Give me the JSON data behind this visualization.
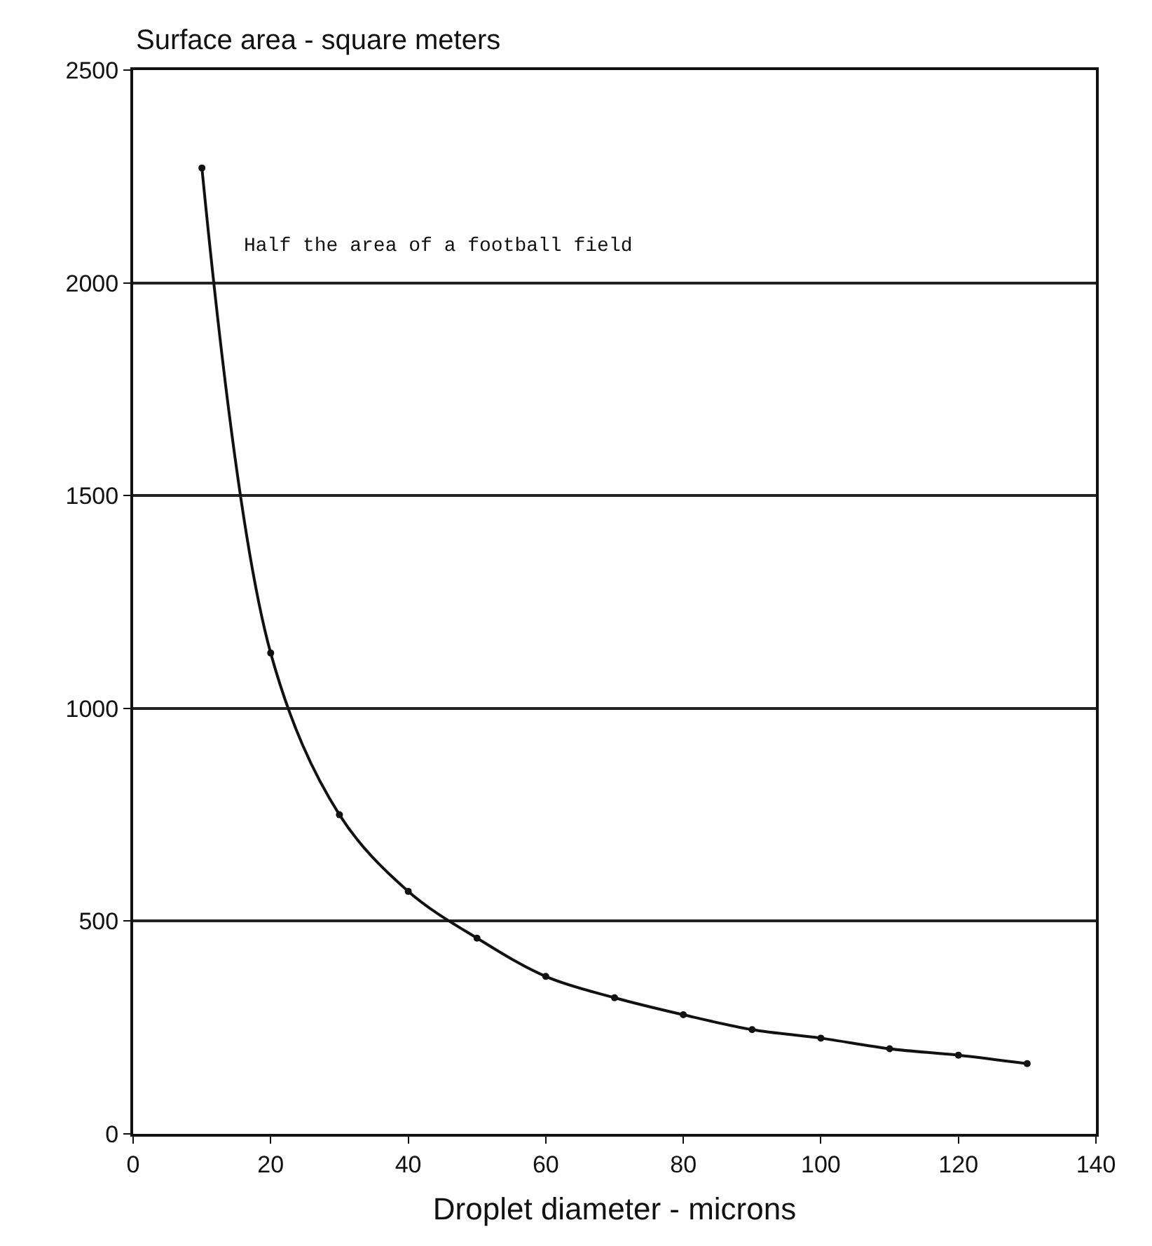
{
  "chart_data": {
    "type": "line",
    "ylabel": "Surface area - square meters",
    "xlabel": "Droplet diameter - microns",
    "x": [
      10,
      20,
      30,
      40,
      50,
      60,
      70,
      80,
      90,
      100,
      110,
      120,
      130
    ],
    "series": [
      {
        "color": "#111111",
        "values": [
          2270,
          1130,
          750,
          570,
          460,
          370,
          320,
          280,
          245,
          225,
          200,
          185,
          165
        ]
      }
    ],
    "xlim": [
      0,
      140
    ],
    "ylim": [
      0,
      2500
    ],
    "xticks": [
      0,
      20,
      40,
      60,
      80,
      100,
      120,
      140
    ],
    "yticks": [
      0,
      500,
      1000,
      1500,
      2000,
      2500
    ],
    "grid": "y",
    "marker": "circle",
    "line_style": "solid",
    "annotations": [
      "Half the area of a football field"
    ]
  }
}
